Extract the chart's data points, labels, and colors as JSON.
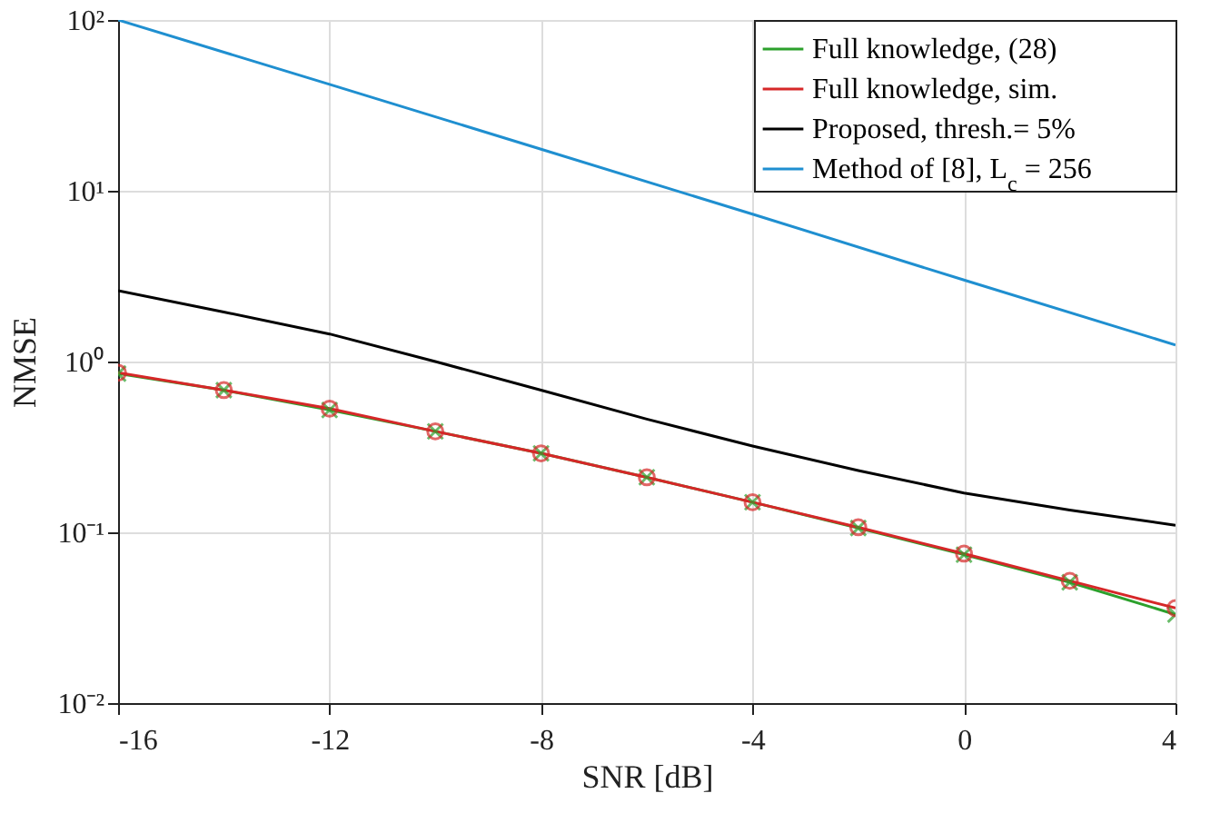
{
  "chart_data": {
    "type": "line",
    "xlabel": "SNR [dB]",
    "ylabel": "NMSE",
    "x": [
      -16,
      -14,
      -12,
      -10,
      -8,
      -6,
      -4,
      -2,
      0,
      2,
      4
    ],
    "series": [
      {
        "name": "Full knowledge, (28)",
        "color": "#2ca02c",
        "marker": "cross",
        "values": [
          0.85,
          0.68,
          0.52,
          0.39,
          0.29,
          0.21,
          0.15,
          0.106,
          0.074,
          0.051,
          0.033
        ]
      },
      {
        "name": "Full knowledge, sim.",
        "color": "#d62728",
        "marker": "circle",
        "values": [
          0.86,
          0.68,
          0.53,
          0.39,
          0.29,
          0.21,
          0.15,
          0.107,
          0.075,
          0.052,
          0.036
        ]
      },
      {
        "name": "Proposed, thresh.= 5%",
        "color": "#000000",
        "marker": "none",
        "values": [
          2.6,
          1.95,
          1.45,
          1.0,
          0.68,
          0.46,
          0.32,
          0.23,
          0.17,
          0.135,
          0.11
        ]
      },
      {
        "name": "Method of [8], L$_{c}$ = 256",
        "color": "#1f8fd0",
        "marker": "none",
        "x": [
          -16,
          -12,
          -8,
          -4,
          0,
          4
        ],
        "values": [
          100,
          42,
          17.5,
          7.3,
          3.0,
          1.25
        ]
      }
    ],
    "xlim": [
      -16,
      4
    ],
    "xticks": [
      -16,
      -12,
      -8,
      -4,
      0,
      4
    ],
    "ylim": [
      0.01,
      100
    ],
    "yticks": [
      {
        "value": 0.01,
        "label": "10⁻²"
      },
      {
        "value": 0.1,
        "label": "10⁻¹"
      },
      {
        "value": 1,
        "label": "10⁰"
      },
      {
        "value": 10,
        "label": "10¹"
      },
      {
        "value": 100,
        "label": "10²"
      }
    ],
    "log": "y",
    "grid": true,
    "legend": "top right"
  }
}
